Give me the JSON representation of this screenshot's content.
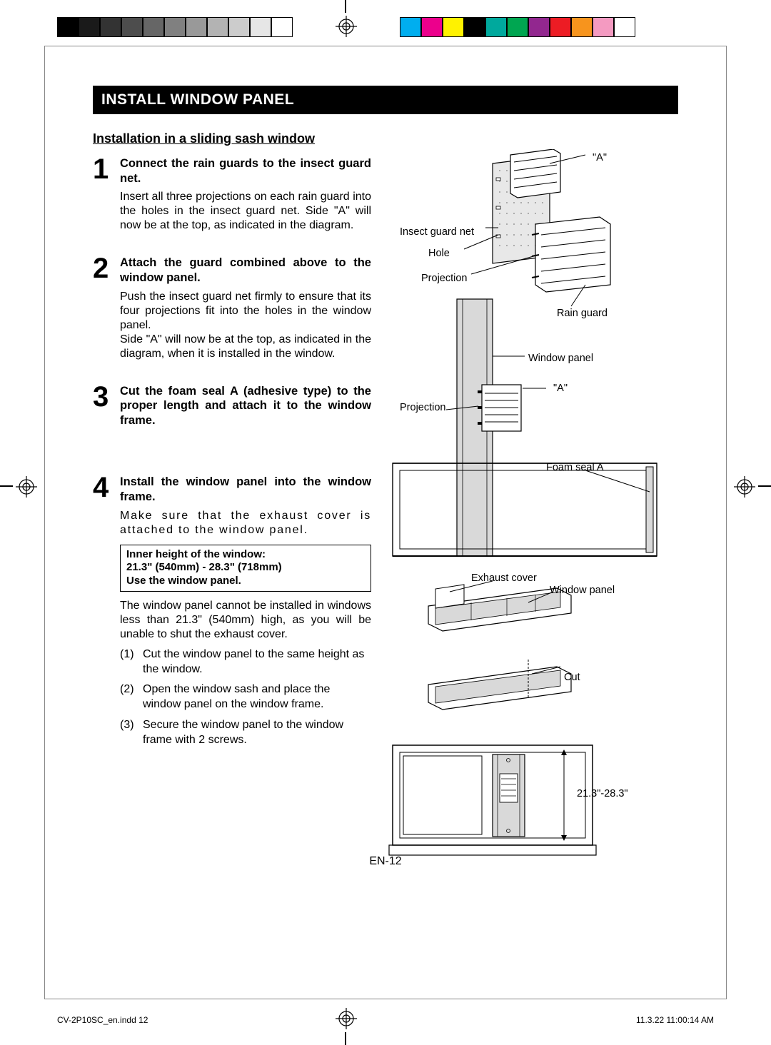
{
  "registration": {
    "gray_swatches": [
      "#000000",
      "#1a1a1a",
      "#333333",
      "#4d4d4d",
      "#666666",
      "#808080",
      "#999999",
      "#b3b3b3",
      "#cccccc",
      "#e6e6e6",
      "#ffffff"
    ],
    "color_swatches": [
      "#00aeef",
      "#ec008c",
      "#fff200",
      "#000000",
      "#00a99d",
      "#00a651",
      "#92278f",
      "#ed1c24",
      "#f7941d",
      "#f49ac1",
      "#ffffff"
    ]
  },
  "header": "INSTALL WINDOW PANEL",
  "subtitle": "Installation in a sliding sash window",
  "steps": [
    {
      "num": "1",
      "title": "Connect the rain guards to the insect guard net.",
      "body": "Insert all three projections on each rain guard into the holes in the insect guard net. Side \"A\" will now be at the top, as indicated in the diagram."
    },
    {
      "num": "2",
      "title": "Attach the guard combined above to the window panel.",
      "body": "Push the insect guard net firmly to ensure that its four projections fit into the holes in the window panel.\nSide \"A\" will now be at the top, as indicated in the diagram, when it is installed in the window."
    },
    {
      "num": "3",
      "title": "Cut the foam seal A (adhesive type) to the proper length and attach it to the window frame.",
      "body": ""
    },
    {
      "num": "4",
      "title": "Install the window panel into the window frame.",
      "body": "Make sure that the exhaust cover is attached to the window panel.",
      "info_box": "Inner height of the window:\n21.3\" (540mm) - 28.3\" (718mm)\nUse the window panel.",
      "after_box": "The window panel cannot be installed in windows less than 21.3\" (540mm) high, as you will be unable to shut the exhaust cover.",
      "sublist": [
        "Cut the window panel to the same height as the window.",
        "Open the window sash and place the window panel on the window frame.",
        "Secure the window panel to the window frame with 2 screws."
      ]
    }
  ],
  "diagram_labels": {
    "a_top": "\"A\"",
    "insect_guard_net": "Insect guard net",
    "hole": "Hole",
    "projection1": "Projection",
    "rain_guard": "Rain guard",
    "window_panel1": "Window panel",
    "a_mid": "\"A\"",
    "projection2": "Projection",
    "foam_seal": "Foam seal A",
    "exhaust_cover": "Exhaust cover",
    "window_panel2": "Window panel",
    "cut": "Cut",
    "height_range": "21.3\"-28.3\""
  },
  "page_number": "EN-12",
  "footer": {
    "left": "CV-2P10SC_en.indd   12",
    "right": "11.3.22   11:00:14 AM"
  },
  "colors": {
    "black": "#000000",
    "white": "#ffffff",
    "gray_fill": "#d9d9d9",
    "dotted_fill": "#e8e8e8"
  }
}
